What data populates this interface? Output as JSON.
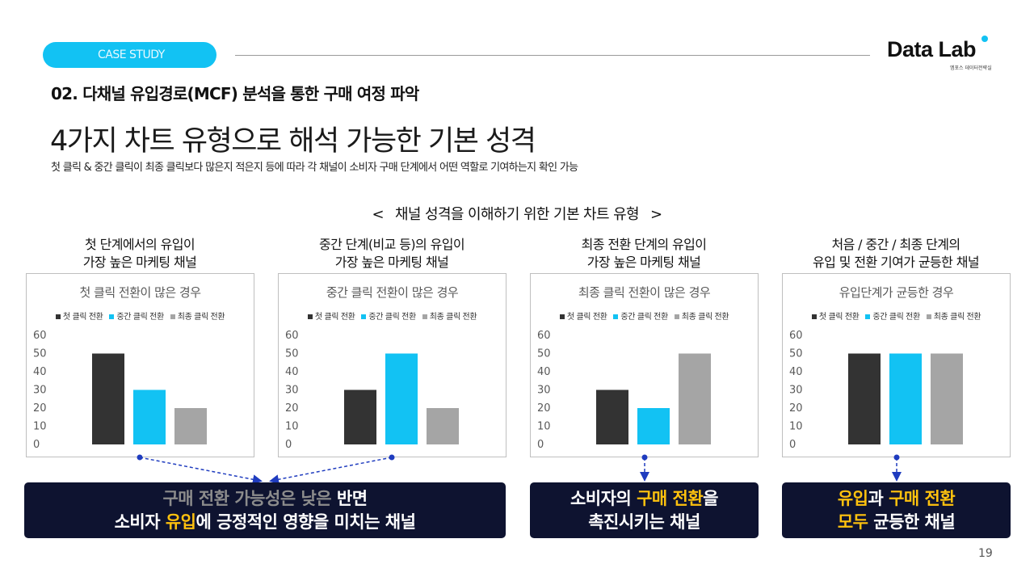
{
  "header": {
    "pill_label": "CASE STUDY",
    "logo_text": "Data Lab",
    "logo_sub": "엠포스 데이터전략실",
    "brand_color": "#12c2f3"
  },
  "section_title": "02. 다채널 유입경로(MCF) 분석을 통한 구매 여정 파악",
  "headline": "4가지 차트 유형으로 해석 가능한 기본 성격",
  "description": "첫 클릭 & 중간 클릭이 최종 클릭보다 많은지 적은지 등에 따라 각 채널이 소비자 구매 단계에서 어떤 역할로 기여하는지 확인 가능",
  "center_title": "채널 성격을 이해하기 위한 기본 차트 유형",
  "center_brackets": [
    "<",
    ">"
  ],
  "columns": [
    {
      "title_line1": "첫 단계에서의 유입이",
      "title_line2": "가장 높은 마케팅 채널"
    },
    {
      "title_line1": "중간 단계(비교 등)의 유입이",
      "title_line2": "가장 높은 마케팅 채널"
    },
    {
      "title_line1": "최종 전환 단계의 유입이",
      "title_line2": "가장 높은 마케팅 채널"
    },
    {
      "title_line1": "처음 / 중간 / 최종 단계의",
      "title_line2": "유입 및 전환 기여가 균등한 채널"
    }
  ],
  "chart_data": [
    {
      "type": "bar",
      "title": "첫 클릭 전환이 많은 경우",
      "categories": [
        ""
      ],
      "series": [
        {
          "name": "첫 클릭 전환",
          "values": [
            50
          ],
          "color": "#333333"
        },
        {
          "name": "중간 클릭 전환",
          "values": [
            30
          ],
          "color": "#12c2f3"
        },
        {
          "name": "최종 클릭 전환",
          "values": [
            20
          ],
          "color": "#a5a5a5"
        }
      ],
      "yticks": [
        0,
        10,
        20,
        30,
        40,
        50,
        60
      ],
      "ylim": [
        0,
        60
      ],
      "legend": "top"
    },
    {
      "type": "bar",
      "title": "중간 클릭 전환이 많은 경우",
      "categories": [
        ""
      ],
      "series": [
        {
          "name": "첫 클릭 전환",
          "values": [
            30
          ],
          "color": "#333333"
        },
        {
          "name": "중간 클릭 전환",
          "values": [
            50
          ],
          "color": "#12c2f3"
        },
        {
          "name": "최종 클릭 전환",
          "values": [
            20
          ],
          "color": "#a5a5a5"
        }
      ],
      "yticks": [
        0,
        10,
        20,
        30,
        40,
        50,
        60
      ],
      "ylim": [
        0,
        60
      ],
      "legend": "top"
    },
    {
      "type": "bar",
      "title": "최종 클릭 전환이 많은 경우",
      "categories": [
        ""
      ],
      "series": [
        {
          "name": "첫 클릭 전환",
          "values": [
            30
          ],
          "color": "#333333"
        },
        {
          "name": "중간 클릭 전환",
          "values": [
            20
          ],
          "color": "#12c2f3"
        },
        {
          "name": "최종 클릭 전환",
          "values": [
            50
          ],
          "color": "#a5a5a5"
        }
      ],
      "yticks": [
        0,
        10,
        20,
        30,
        40,
        50,
        60
      ],
      "ylim": [
        0,
        60
      ],
      "legend": "top"
    },
    {
      "type": "bar",
      "title": "유입단계가 균등한 경우",
      "categories": [
        ""
      ],
      "series": [
        {
          "name": "첫 클릭 전환",
          "values": [
            50
          ],
          "color": "#333333"
        },
        {
          "name": "중간 클릭 전환",
          "values": [
            50
          ],
          "color": "#12c2f3"
        },
        {
          "name": "최종 클릭 전환",
          "values": [
            50
          ],
          "color": "#a5a5a5"
        }
      ],
      "yticks": [
        0,
        10,
        20,
        30,
        40,
        50,
        60
      ],
      "ylim": [
        0,
        60
      ],
      "legend": "top"
    }
  ],
  "callouts": {
    "box1": {
      "line1_dim": "구매 전환 가능성은 낮은",
      "line1_rest": "반면",
      "line2_a": "소비자",
      "line2_hl": "유입",
      "line2_b": "에 긍정적인 영향을 미치는 채널"
    },
    "box2": {
      "line1_a": "소비자의",
      "line1_hl": "구매 전환",
      "line1_b": "을",
      "line2": "촉진시키는 채널"
    },
    "box3": {
      "line1_hl1": "유입",
      "line1_a": "과",
      "line1_hl2": "구매 전환",
      "line2_hl": "모두",
      "line2_b": "균등한 채널"
    },
    "highlight_color": "#ffc20e",
    "box_color": "#0e1330"
  },
  "page_number": "19"
}
